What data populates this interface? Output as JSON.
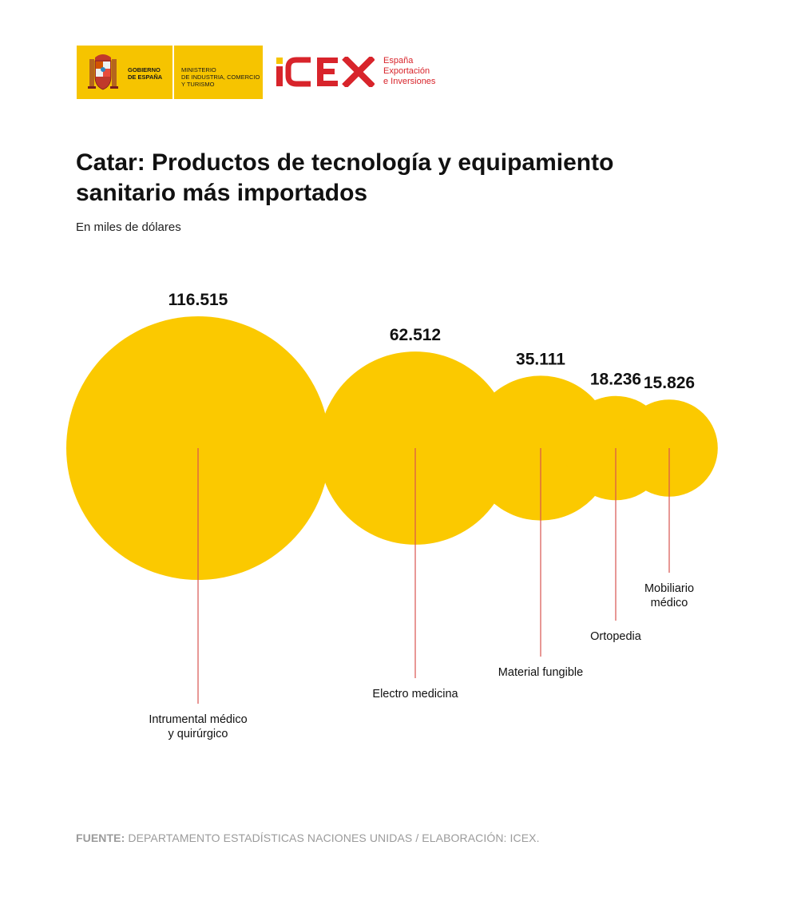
{
  "header": {
    "gov_lines": [
      "GOBIERNO",
      "DE ESPAÑA"
    ],
    "ministry_lines": [
      "MINISTERIO",
      "DE INDUSTRIA, COMERCIO",
      "Y TURISMO"
    ],
    "brand": "ICEX",
    "brand_tag_lines": [
      "España",
      "Exportación",
      "e Inversiones"
    ],
    "colors": {
      "logo_yellow": "#f6c400",
      "icex_red": "#d8242b"
    }
  },
  "title": "Catar: Productos de tecnología y equipamiento sanitario más importados",
  "subtitle": "En miles de dólares",
  "chart_data": {
    "type": "bubble",
    "title": "Catar: Productos de tecnología y equipamiento sanitario más importados",
    "subtitle": "En miles de dólares",
    "unit": "miles de dólares",
    "bubble_color": "#fbc900",
    "leader_color": "#d9534f",
    "points": [
      {
        "label_lines": [
          "Intrumental médico",
          "y quirúrgico"
        ],
        "value": 116515,
        "value_label": "116.515"
      },
      {
        "label_lines": [
          "Electro medicina"
        ],
        "value": 62512,
        "value_label": "62.512"
      },
      {
        "label_lines": [
          "Material fungible"
        ],
        "value": 35111,
        "value_label": "35.111"
      },
      {
        "label_lines": [
          "Ortopedia"
        ],
        "value": 18236,
        "value_label": "18.236"
      },
      {
        "label_lines": [
          "Mobiliario",
          "médico"
        ],
        "value": 15826,
        "value_label": "15.826"
      }
    ]
  },
  "source": {
    "label": "FUENTE:",
    "text": " DEPARTAMENTO ESTADÍSTICAS NACIONES UNIDAS / ELABORACIÓN: ICEX."
  }
}
